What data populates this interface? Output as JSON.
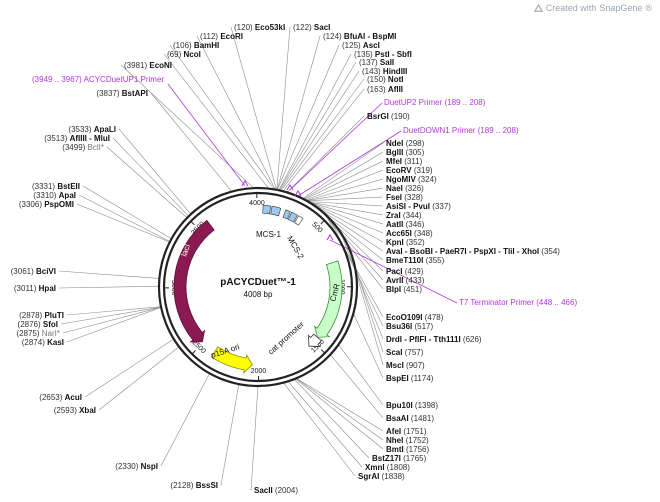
{
  "plasmid": {
    "name": "pACYCDuet™-1",
    "size": "4008 bp",
    "length": 4008
  },
  "branding": {
    "created_with": "Created with ",
    "app": "SnapGene",
    "mark": "®"
  },
  "colors": {
    "lacI": "#8b1a52",
    "CmR": "#c8ffc8",
    "p15A_ori": "#ffff00",
    "MCS": "#9cc8f0",
    "primer": "#b03ad8"
  },
  "ticks": [
    {
      "bp": 4000,
      "label": "4000"
    },
    {
      "bp": 500,
      "label": "500"
    },
    {
      "bp": 1000,
      "label": "1000"
    },
    {
      "bp": 1500,
      "label": "1500"
    },
    {
      "bp": 2000,
      "label": "2000"
    },
    {
      "bp": 2500,
      "label": "2500"
    },
    {
      "bp": 3000,
      "label": "3000"
    },
    {
      "bp": 3500,
      "label": "3500"
    }
  ],
  "features": [
    {
      "name": "lacI",
      "start": 2510,
      "end": 3590,
      "direction": "reverse"
    },
    {
      "name": "CmR",
      "start": 800,
      "end": 1450,
      "direction": "forward"
    },
    {
      "name": "p15A ori",
      "start": 2050,
      "end": 2380,
      "direction": "reverse"
    },
    {
      "name": "cat promoter",
      "start": 1450,
      "end": 1550,
      "direction": "forward"
    },
    {
      "name": "MCS-1",
      "start": 40,
      "end": 180
    },
    {
      "name": "MCS-2",
      "start": 220,
      "end": 370
    }
  ],
  "right_sites": [
    {
      "name": "Eco53kI",
      "pos": "(120)"
    },
    {
      "name": "SacI",
      "pos": "(122)"
    },
    {
      "name": "EcoRI",
      "pos": "(112)"
    },
    {
      "name": "BfuAI - BspMI",
      "pos": "(124)"
    },
    {
      "name": "BamHI",
      "pos": "(106)"
    },
    {
      "name": "AscI",
      "pos": "(125)"
    },
    {
      "name": "NcoI",
      "pos": "(69)"
    },
    {
      "name": "PstI - SbfI",
      "pos": "(135)"
    },
    {
      "name": "SalI",
      "pos": "(137)"
    },
    {
      "name": "EcoNI",
      "pos": "(3981)"
    },
    {
      "name": "HindIII",
      "pos": "(143)"
    },
    {
      "name": "NotI",
      "pos": "(150)"
    },
    {
      "name": "AflII",
      "pos": "(163)"
    },
    {
      "name": "BsrGI",
      "pos": "(190)"
    },
    {
      "name": "NdeI",
      "pos": "(298)"
    },
    {
      "name": "BglII",
      "pos": "(305)"
    },
    {
      "name": "MfeI",
      "pos": "(311)"
    },
    {
      "name": "EcoRV",
      "pos": "(319)"
    },
    {
      "name": "NgoMIV",
      "pos": "(324)"
    },
    {
      "name": "NaeI",
      "pos": "(326)"
    },
    {
      "name": "FseI",
      "pos": "(328)"
    },
    {
      "name": "AsiSI - PvuI",
      "pos": "(337)"
    },
    {
      "name": "ZraI",
      "pos": "(344)"
    },
    {
      "name": "AatII",
      "pos": "(346)"
    },
    {
      "name": "Acc65I",
      "pos": "(348)"
    },
    {
      "name": "KpnI",
      "pos": "(352)"
    },
    {
      "name": "AvaI - BsoBI - PaeR7I - PspXI - TliI - XhoI",
      "pos": "(354)"
    },
    {
      "name": "BmeT110I",
      "pos": "(355)"
    },
    {
      "name": "PacI",
      "pos": "(429)"
    },
    {
      "name": "AvrII",
      "pos": "(433)"
    },
    {
      "name": "BlpI",
      "pos": "(451)"
    },
    {
      "name": "EcoO109I",
      "pos": "(478)"
    },
    {
      "name": "Bsu36I",
      "pos": "(517)"
    },
    {
      "name": "DrdI - PflFI - Tth111I",
      "pos": "(626)"
    },
    {
      "name": "ScaI",
      "pos": "(757)"
    },
    {
      "name": "MscI",
      "pos": "(907)"
    },
    {
      "name": "BspEI",
      "pos": "(1174)"
    },
    {
      "name": "Bpu10I",
      "pos": "(1398)"
    },
    {
      "name": "BsaAI",
      "pos": "(1481)"
    },
    {
      "name": "AfeI",
      "pos": "(1751)"
    },
    {
      "name": "NheI",
      "pos": "(1752)"
    },
    {
      "name": "BmtI",
      "pos": "(1756)"
    },
    {
      "name": "BstZ17I",
      "pos": "(1765)"
    },
    {
      "name": "XmnI",
      "pos": "(1808)"
    },
    {
      "name": "SgrAI",
      "pos": "(1838)"
    },
    {
      "name": "SacII",
      "pos": "(2004)"
    }
  ],
  "left_sites": [
    {
      "name": "BstAPI",
      "pos": "(3837)"
    },
    {
      "name": "ApaLI",
      "pos": "(3533)"
    },
    {
      "name": "AflIII - MluI",
      "pos": "(3513)"
    },
    {
      "name": "BclI*",
      "pos": "(3499)",
      "grey": true
    },
    {
      "name": "BstEII",
      "pos": "(3331)"
    },
    {
      "name": "ApaI",
      "pos": "(3310)"
    },
    {
      "name": "PspOMI",
      "pos": "(3306)"
    },
    {
      "name": "BciVI",
      "pos": "(3061)"
    },
    {
      "name": "HpaI",
      "pos": "(3011)"
    },
    {
      "name": "PluTI",
      "pos": "(2878)"
    },
    {
      "name": "SfoI",
      "pos": "(2876)"
    },
    {
      "name": "NarI*",
      "pos": "(2875)",
      "grey": true
    },
    {
      "name": "KasI",
      "pos": "(2874)"
    },
    {
      "name": "AcuI",
      "pos": "(2653)"
    },
    {
      "name": "XbaI",
      "pos": "(2593)"
    },
    {
      "name": "NspI",
      "pos": "(2330)"
    },
    {
      "name": "BssSI",
      "pos": "(2128)"
    }
  ],
  "primers": [
    {
      "name": "ACYCDuetUP1 Primer",
      "range": "(3949 .. 3967)"
    },
    {
      "name": "DuetUP2 Primer",
      "range": "(189 .. 208)"
    },
    {
      "name": "DuetDOWN1 Primer",
      "range": "(189 .. 208)"
    },
    {
      "name": "T7 Terminator Primer",
      "range": "(448 .. 466)"
    }
  ]
}
